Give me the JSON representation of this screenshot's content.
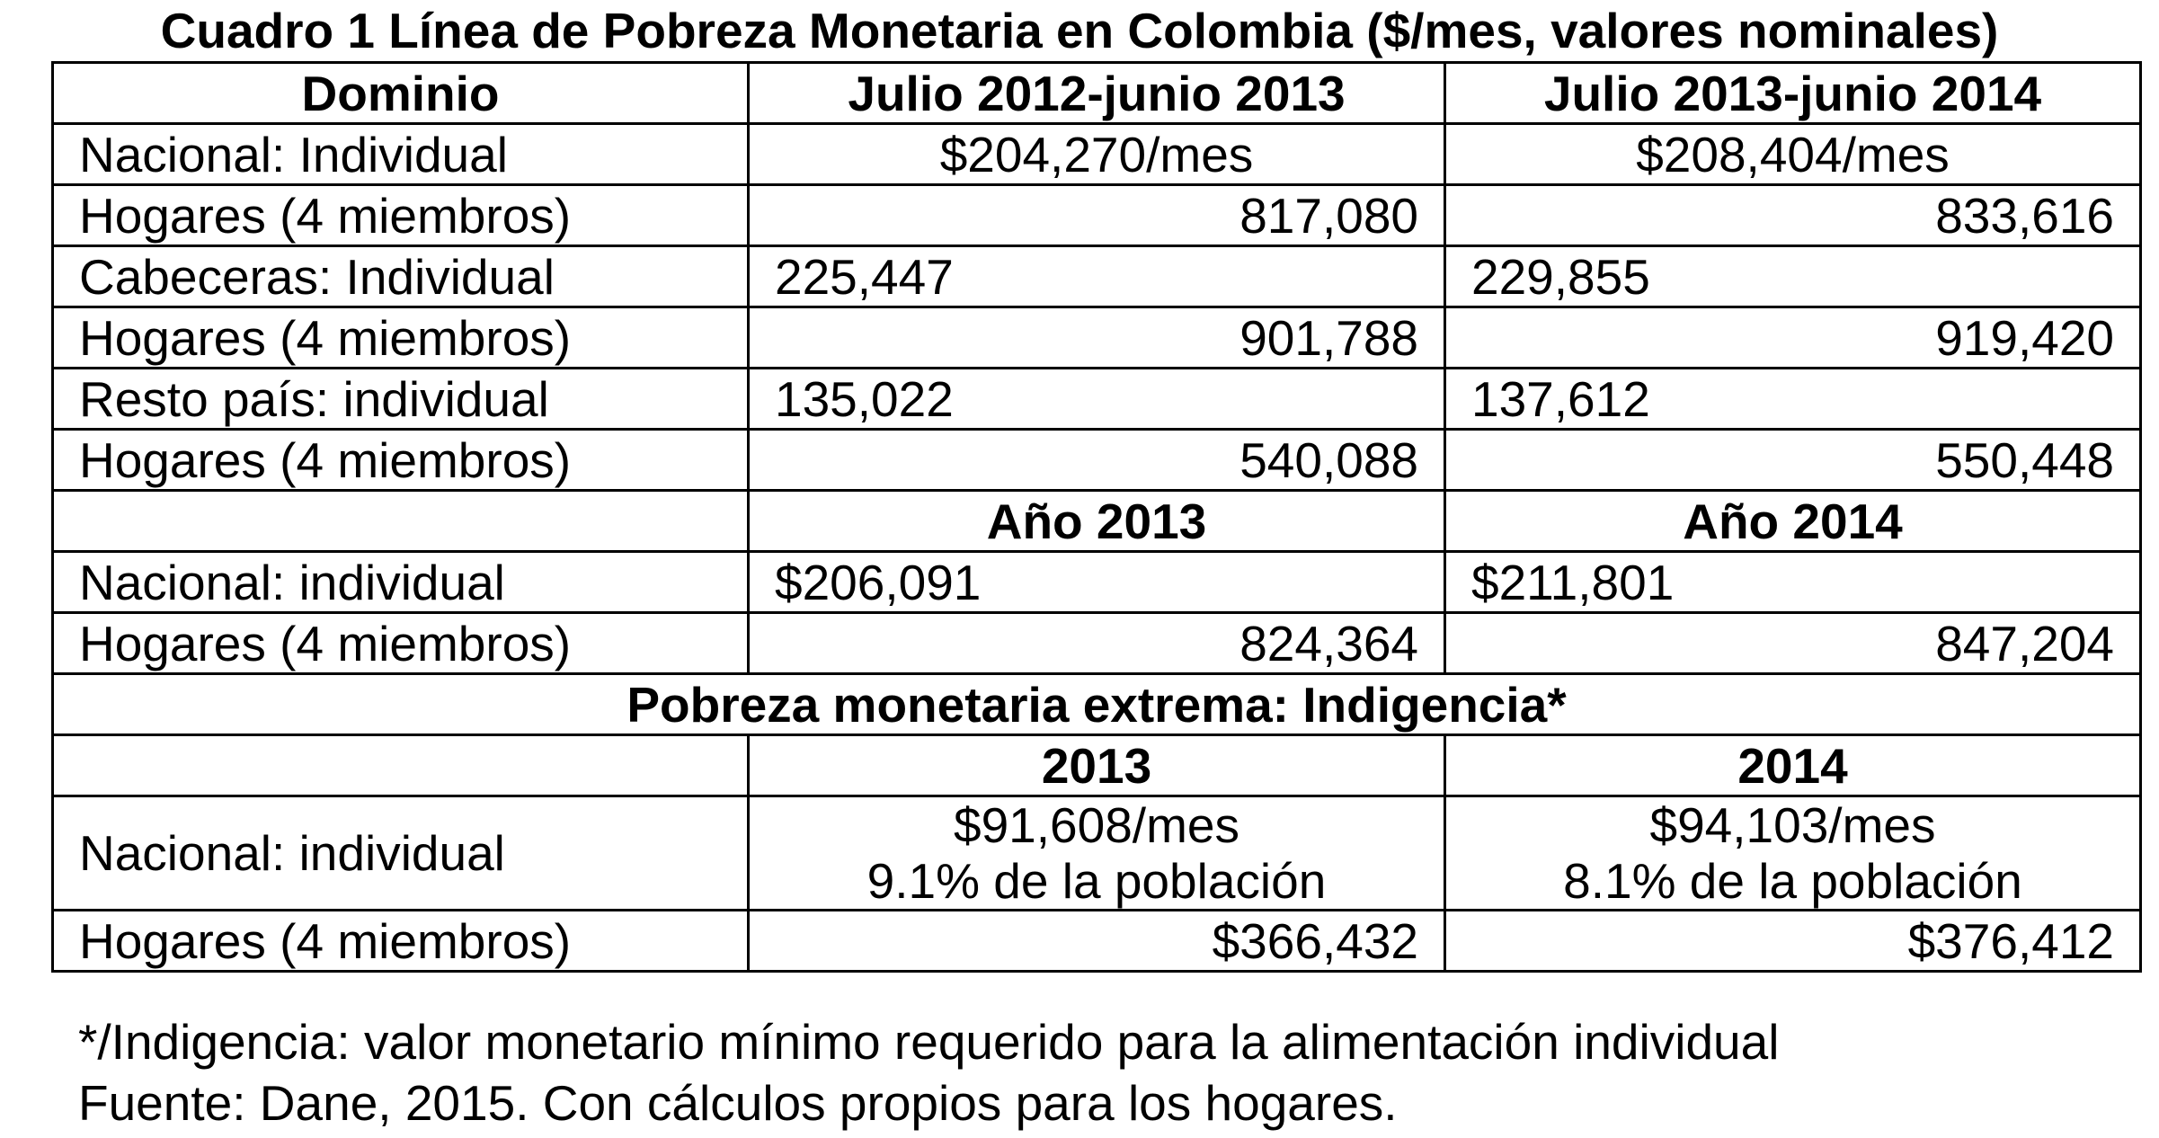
{
  "title": "Cuadro 1 Línea de Pobreza Monetaria en Colombia ($/mes, valores nominales)",
  "header": {
    "col1": "Dominio",
    "col2": "Julio 2012-junio 2013",
    "col3": "Julio 2013-junio 2014"
  },
  "rows_period": [
    {
      "label": "Nacional: Individual",
      "v2012": "$204,270/mes",
      "v2013": "$208,404/mes"
    },
    {
      "label": "Hogares (4 miembros)",
      "v2012": "817,080",
      "v2013": "833,616"
    },
    {
      "label": "Cabeceras: Individual",
      "v2012": "225,447",
      "v2013": "229,855"
    },
    {
      "label": "Hogares (4 miembros)",
      "v2012": "901,788",
      "v2013": "919,420"
    },
    {
      "label": "Resto país: individual",
      "v2012": "135,022",
      "v2013": "137,612"
    },
    {
      "label": "Hogares (4 miembros)",
      "v2012": "540,088",
      "v2013": "550,448"
    }
  ],
  "year_header": {
    "y1": "Año 2013",
    "y2": "Año 2014"
  },
  "rows_year": [
    {
      "label": "Nacional: individual",
      "v1": "$206,091",
      "v2": "$211,801"
    },
    {
      "label": "Hogares (4 miembros)",
      "v1": "824,364",
      "v2": "847,204"
    }
  ],
  "extreme": {
    "heading": "Pobreza monetaria extrema: Indigencia*",
    "y1": "2013",
    "y2": "2014",
    "national_label": "Nacional: individual",
    "national_v1_line1": "$91,608/mes",
    "national_v1_line2": "9.1% de la población",
    "national_v2_line1": "$94,103/mes",
    "national_v2_line2": "8.1% de la población",
    "hogares_label": "Hogares (4 miembros)",
    "hogares_v1": "$366,432",
    "hogares_v2": "$376,412"
  },
  "notes": {
    "footnote": "*/Indigencia: valor monetario mínimo requerido para la alimentación individual",
    "source": "Fuente: Dane, 2015. Con cálculos propios para los hogares."
  }
}
